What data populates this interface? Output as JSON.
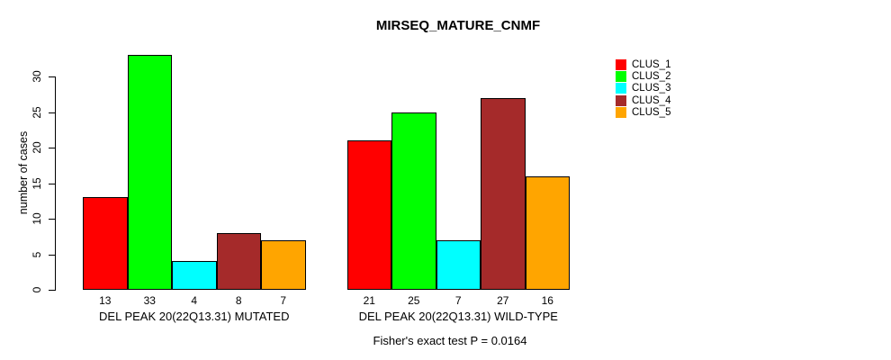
{
  "title": "MIRSEQ_MATURE_CNMF",
  "caption": "Fisher's exact test P = 0.0164",
  "y_axis": {
    "label": "number of cases",
    "ticks": [
      0,
      5,
      10,
      15,
      20,
      25,
      30
    ]
  },
  "legend": {
    "position": "right",
    "items": [
      {
        "label": "CLUS_1",
        "color": "#FF0000"
      },
      {
        "label": "CLUS_2",
        "color": "#00FF00"
      },
      {
        "label": "CLUS_3",
        "color": "#00FFFF"
      },
      {
        "label": "CLUS_4",
        "color": "#A52A2A"
      },
      {
        "label": "CLUS_5",
        "color": "#FFA500"
      }
    ]
  },
  "chart_data": {
    "type": "bar",
    "title": "MIRSEQ_MATURE_CNMF",
    "ylabel": "number of cases",
    "ylim": [
      0,
      33
    ],
    "yticks": [
      0,
      5,
      10,
      15,
      20,
      25,
      30
    ],
    "grid": false,
    "legend_position": "right",
    "series_names": [
      "CLUS_1",
      "CLUS_2",
      "CLUS_3",
      "CLUS_4",
      "CLUS_5"
    ],
    "series_colors": [
      "#FF0000",
      "#00FF00",
      "#00FFFF",
      "#A52A2A",
      "#FFA500"
    ],
    "groups": [
      {
        "label": "DEL PEAK 20(22Q13.31) MUTATED",
        "values": [
          13,
          33,
          4,
          8,
          7
        ]
      },
      {
        "label": "DEL PEAK 20(22Q13.31) WILD-TYPE",
        "values": [
          21,
          25,
          7,
          27,
          16
        ]
      }
    ],
    "bar_value_labels_shown": true,
    "footnote": "Fisher's exact test P = 0.0164"
  }
}
